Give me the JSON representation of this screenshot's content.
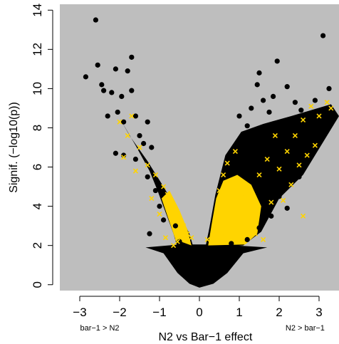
{
  "chart_data": {
    "type": "scatter",
    "title": "",
    "xlabel": "N2 vs Bar−1 effect",
    "ylabel": "Signif. (−log10(p))",
    "xlim": [
      -3.5,
      3.5
    ],
    "ylim": [
      -0.3,
      14.3
    ],
    "x_ticks": [
      -3,
      -2,
      -1,
      0,
      1,
      2,
      3
    ],
    "x_tick_labels": [
      "−3",
      "−2",
      "−1",
      "0",
      "1",
      "2",
      "3"
    ],
    "y_ticks": [
      0,
      2,
      4,
      6,
      8,
      10,
      12,
      14
    ],
    "y_tick_labels": [
      "0",
      "2",
      "4",
      "6",
      "8",
      "10",
      "12",
      "14"
    ],
    "side_labels": {
      "left": "bar−1 > N2",
      "right": "N2 > bar−1"
    },
    "background_color": "#bebebe",
    "grid": false,
    "series": [
      {
        "marker": "filled-circle",
        "color": "#000000",
        "values_xy": [
          [
            -2.85,
            10.6
          ],
          [
            -2.6,
            13.5
          ],
          [
            -2.55,
            11.2
          ],
          [
            -2.45,
            10.2
          ],
          [
            -2.4,
            9.9
          ],
          [
            -2.3,
            8.6
          ],
          [
            -2.2,
            9.8
          ],
          [
            -2.1,
            11.0
          ],
          [
            -2.05,
            8.8
          ],
          [
            -1.95,
            9.6
          ],
          [
            -1.9,
            8.3
          ],
          [
            -1.8,
            10.9
          ],
          [
            -1.7,
            11.6
          ],
          [
            -1.7,
            9.9
          ],
          [
            -1.6,
            8.6
          ],
          [
            -1.5,
            7.6
          ],
          [
            -1.4,
            7.2
          ],
          [
            -1.3,
            8.3
          ],
          [
            -1.2,
            7.0
          ],
          [
            -2.1,
            6.7
          ],
          [
            -1.9,
            6.6
          ],
          [
            -1.6,
            6.4
          ],
          [
            -1.3,
            5.5
          ],
          [
            -1.1,
            4.8
          ],
          [
            -1.0,
            4.0
          ],
          [
            -0.9,
            3.3
          ],
          [
            -1.25,
            2.6
          ],
          [
            -0.6,
            3.0
          ],
          [
            -0.5,
            2.2
          ],
          [
            -0.4,
            1.9
          ],
          [
            1.0,
            8.6
          ],
          [
            1.2,
            8.1
          ],
          [
            1.3,
            9.0
          ],
          [
            1.45,
            10.2
          ],
          [
            1.5,
            10.8
          ],
          [
            1.6,
            9.4
          ],
          [
            1.75,
            8.8
          ],
          [
            1.85,
            9.6
          ],
          [
            1.95,
            11.4
          ],
          [
            2.1,
            8.0
          ],
          [
            2.2,
            10.1
          ],
          [
            2.4,
            9.3
          ],
          [
            2.55,
            8.9
          ],
          [
            2.6,
            8.2
          ],
          [
            2.9,
            9.4
          ],
          [
            3.1,
            12.7
          ],
          [
            3.25,
            10.0
          ],
          [
            1.6,
            7.0
          ],
          [
            1.9,
            6.7
          ],
          [
            2.2,
            6.0
          ],
          [
            2.5,
            5.5
          ],
          [
            1.6,
            5.0
          ],
          [
            2.0,
            4.5
          ],
          [
            1.8,
            3.5
          ],
          [
            2.2,
            3.9
          ],
          [
            1.5,
            2.9
          ],
          [
            1.2,
            2.3
          ],
          [
            0.8,
            2.1
          ]
        ]
      },
      {
        "marker": "x",
        "color": "#ffd400",
        "values_xy": [
          [
            -1.7,
            8.6
          ],
          [
            -1.5,
            7.0
          ],
          [
            -1.9,
            6.5
          ],
          [
            -1.3,
            6.1
          ],
          [
            -1.1,
            5.6
          ],
          [
            -0.9,
            5.0
          ],
          [
            -0.8,
            4.6
          ],
          [
            -0.7,
            4.2
          ],
          [
            -0.6,
            3.8
          ],
          [
            -0.5,
            3.4
          ],
          [
            -0.4,
            3.0
          ],
          [
            -0.3,
            2.6
          ],
          [
            -0.55,
            2.2
          ],
          [
            -0.85,
            2.4
          ],
          [
            -0.65,
            2.0
          ],
          [
            -1.6,
            5.8
          ],
          [
            -1.2,
            4.4
          ],
          [
            -1.0,
            3.6
          ],
          [
            -2.0,
            8.3
          ],
          [
            -1.8,
            7.6
          ],
          [
            0.5,
            4.8
          ],
          [
            0.6,
            5.6
          ],
          [
            0.7,
            6.2
          ],
          [
            0.8,
            5.0
          ],
          [
            0.9,
            4.2
          ],
          [
            1.0,
            3.8
          ],
          [
            1.1,
            4.5
          ],
          [
            1.2,
            3.6
          ],
          [
            1.3,
            3.0
          ],
          [
            1.4,
            2.6
          ],
          [
            0.4,
            3.0
          ],
          [
            0.6,
            2.6
          ],
          [
            1.6,
            2.3
          ],
          [
            1.8,
            4.2
          ],
          [
            2.0,
            5.9
          ],
          [
            2.2,
            6.8
          ],
          [
            2.4,
            7.6
          ],
          [
            2.6,
            8.4
          ],
          [
            2.8,
            9.1
          ],
          [
            3.0,
            8.6
          ],
          [
            3.2,
            9.3
          ],
          [
            2.5,
            6.1
          ],
          [
            2.7,
            6.6
          ],
          [
            1.9,
            7.6
          ],
          [
            2.3,
            5.1
          ],
          [
            2.1,
            4.3
          ],
          [
            1.7,
            6.4
          ],
          [
            1.5,
            5.6
          ],
          [
            3.3,
            9.0
          ],
          [
            2.9,
            7.1
          ],
          [
            2.6,
            3.5
          ],
          [
            0.9,
            6.8
          ],
          [
            1.0,
            2.4
          ],
          [
            -0.2,
            2.4
          ],
          [
            0.2,
            2.3
          ]
        ]
      }
    ]
  }
}
